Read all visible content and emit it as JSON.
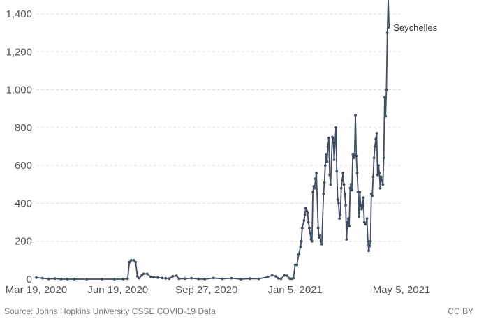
{
  "chart_data": {
    "type": "line",
    "series_label": "Seychelles",
    "x_ticks": [
      "Mar 19, 2020",
      "Jun 19, 2020",
      "Sep 27, 2020",
      "Jan 5, 2021",
      "May 5, 2021"
    ],
    "y_ticks": [
      "0",
      "200",
      "400",
      "600",
      "800",
      "1,000",
      "1,200",
      "1,400"
    ],
    "ylim": [
      0,
      1400
    ],
    "xlim": [
      "2020-03-19",
      "2021-05-05"
    ],
    "grid": true,
    "series": [
      {
        "color": "#3f4e63",
        "points": [
          [
            "2020-03-19",
            8
          ],
          [
            "2020-03-26",
            5
          ],
          [
            "2020-04-02",
            1
          ],
          [
            "2020-04-09",
            3
          ],
          [
            "2020-04-16",
            0
          ],
          [
            "2020-04-23",
            0
          ],
          [
            "2020-05-01",
            0
          ],
          [
            "2020-05-15",
            0
          ],
          [
            "2020-06-01",
            0
          ],
          [
            "2020-06-15",
            0
          ],
          [
            "2020-06-25",
            0
          ],
          [
            "2020-06-30",
            2
          ],
          [
            "2020-07-02",
            90
          ],
          [
            "2020-07-04",
            100
          ],
          [
            "2020-07-07",
            100
          ],
          [
            "2020-07-09",
            90
          ],
          [
            "2020-07-11",
            15
          ],
          [
            "2020-07-13",
            5
          ],
          [
            "2020-07-16",
            20
          ],
          [
            "2020-07-18",
            28
          ],
          [
            "2020-07-22",
            28
          ],
          [
            "2020-07-26",
            12
          ],
          [
            "2020-07-30",
            10
          ],
          [
            "2020-08-03",
            8
          ],
          [
            "2020-08-08",
            6
          ],
          [
            "2020-08-12",
            4
          ],
          [
            "2020-08-16",
            3
          ],
          [
            "2020-08-20",
            15
          ],
          [
            "2020-08-24",
            18
          ],
          [
            "2020-08-27",
            2
          ],
          [
            "2020-09-03",
            3
          ],
          [
            "2020-09-10",
            5
          ],
          [
            "2020-09-18",
            1
          ],
          [
            "2020-09-25",
            0
          ],
          [
            "2020-10-05",
            6
          ],
          [
            "2020-10-15",
            2
          ],
          [
            "2020-10-25",
            5
          ],
          [
            "2020-11-05",
            0
          ],
          [
            "2020-11-15",
            3
          ],
          [
            "2020-11-25",
            2
          ],
          [
            "2020-12-05",
            12
          ],
          [
            "2020-12-10",
            20
          ],
          [
            "2020-12-14",
            15
          ],
          [
            "2020-12-17",
            4
          ],
          [
            "2020-12-20",
            2
          ],
          [
            "2020-12-24",
            20
          ],
          [
            "2020-12-27",
            18
          ],
          [
            "2020-12-30",
            3
          ],
          [
            "2021-01-01",
            2
          ],
          [
            "2021-01-03",
            5
          ],
          [
            "2021-01-05",
            75
          ],
          [
            "2021-01-07",
            75
          ],
          [
            "2021-01-09",
            130
          ],
          [
            "2021-01-11",
            170
          ],
          [
            "2021-01-12",
            200
          ],
          [
            "2021-01-13",
            270
          ],
          [
            "2021-01-15",
            310
          ],
          [
            "2021-01-16",
            340
          ],
          [
            "2021-01-17",
            375
          ],
          [
            "2021-01-18",
            360
          ],
          [
            "2021-01-19",
            350
          ],
          [
            "2021-01-20",
            300
          ],
          [
            "2021-01-21",
            270
          ],
          [
            "2021-01-22",
            240
          ],
          [
            "2021-01-23",
            210
          ],
          [
            "2021-01-24",
            200
          ],
          [
            "2021-01-25",
            460
          ],
          [
            "2021-01-26",
            490
          ],
          [
            "2021-01-27",
            480
          ],
          [
            "2021-01-28",
            530
          ],
          [
            "2021-01-29",
            560
          ],
          [
            "2021-01-31",
            270
          ],
          [
            "2021-02-01",
            220
          ],
          [
            "2021-02-02",
            230
          ],
          [
            "2021-02-03",
            200
          ],
          [
            "2021-02-04",
            185
          ],
          [
            "2021-02-06",
            450
          ],
          [
            "2021-02-07",
            510
          ],
          [
            "2021-02-08",
            600
          ],
          [
            "2021-02-09",
            660
          ],
          [
            "2021-02-10",
            620
          ],
          [
            "2021-02-11",
            700
          ],
          [
            "2021-02-12",
            745
          ],
          [
            "2021-02-13",
            550
          ],
          [
            "2021-02-14",
            500
          ],
          [
            "2021-02-16",
            750
          ],
          [
            "2021-02-17",
            740
          ],
          [
            "2021-02-18",
            630
          ],
          [
            "2021-02-19",
            720
          ],
          [
            "2021-02-20",
            800
          ],
          [
            "2021-02-21",
            570
          ],
          [
            "2021-02-22",
            420
          ],
          [
            "2021-02-23",
            400
          ],
          [
            "2021-02-24",
            320
          ],
          [
            "2021-02-25",
            340
          ],
          [
            "2021-02-26",
            480
          ],
          [
            "2021-02-27",
            520
          ],
          [
            "2021-02-28",
            560
          ],
          [
            "2021-03-01",
            500
          ],
          [
            "2021-03-02",
            450
          ],
          [
            "2021-03-03",
            390
          ],
          [
            "2021-03-04",
            210
          ],
          [
            "2021-03-05",
            300
          ],
          [
            "2021-03-06",
            320
          ],
          [
            "2021-03-07",
            280
          ],
          [
            "2021-03-08",
            480
          ],
          [
            "2021-03-09",
            500
          ],
          [
            "2021-03-10",
            470
          ],
          [
            "2021-03-11",
            660
          ],
          [
            "2021-03-12",
            640
          ],
          [
            "2021-03-13",
            660
          ],
          [
            "2021-03-14",
            865
          ],
          [
            "2021-03-15",
            650
          ],
          [
            "2021-03-16",
            560
          ],
          [
            "2021-03-17",
            460
          ],
          [
            "2021-03-18",
            330
          ],
          [
            "2021-03-19",
            460
          ],
          [
            "2021-03-20",
            390
          ],
          [
            "2021-03-21",
            370
          ],
          [
            "2021-03-22",
            380
          ],
          [
            "2021-03-23",
            430
          ],
          [
            "2021-03-24",
            300
          ],
          [
            "2021-03-25",
            290
          ],
          [
            "2021-03-26",
            290
          ],
          [
            "2021-03-27",
            320
          ],
          [
            "2021-03-28",
            200
          ],
          [
            "2021-03-29",
            150
          ],
          [
            "2021-03-30",
            175
          ],
          [
            "2021-03-31",
            200
          ],
          [
            "2021-04-01",
            450
          ],
          [
            "2021-04-02",
            440
          ],
          [
            "2021-04-03",
            540
          ],
          [
            "2021-04-04",
            640
          ],
          [
            "2021-04-05",
            700
          ],
          [
            "2021-04-06",
            740
          ],
          [
            "2021-04-07",
            770
          ],
          [
            "2021-04-08",
            550
          ],
          [
            "2021-04-09",
            600
          ],
          [
            "2021-04-10",
            560
          ],
          [
            "2021-04-11",
            480
          ],
          [
            "2021-04-12",
            540
          ],
          [
            "2021-04-13",
            520
          ],
          [
            "2021-04-14",
            500
          ],
          [
            "2021-04-15",
            640
          ],
          [
            "2021-04-16",
            960
          ],
          [
            "2021-04-17",
            860
          ],
          [
            "2021-04-18",
            1000
          ],
          [
            "2021-04-19",
            1300
          ],
          [
            "2021-04-20",
            1480
          ],
          [
            "2021-04-21",
            1330
          ]
        ]
      }
    ]
  },
  "footer": {
    "source": "Source: Johns Hopkins University CSSE COVID-19 Data",
    "license": "CC BY"
  }
}
